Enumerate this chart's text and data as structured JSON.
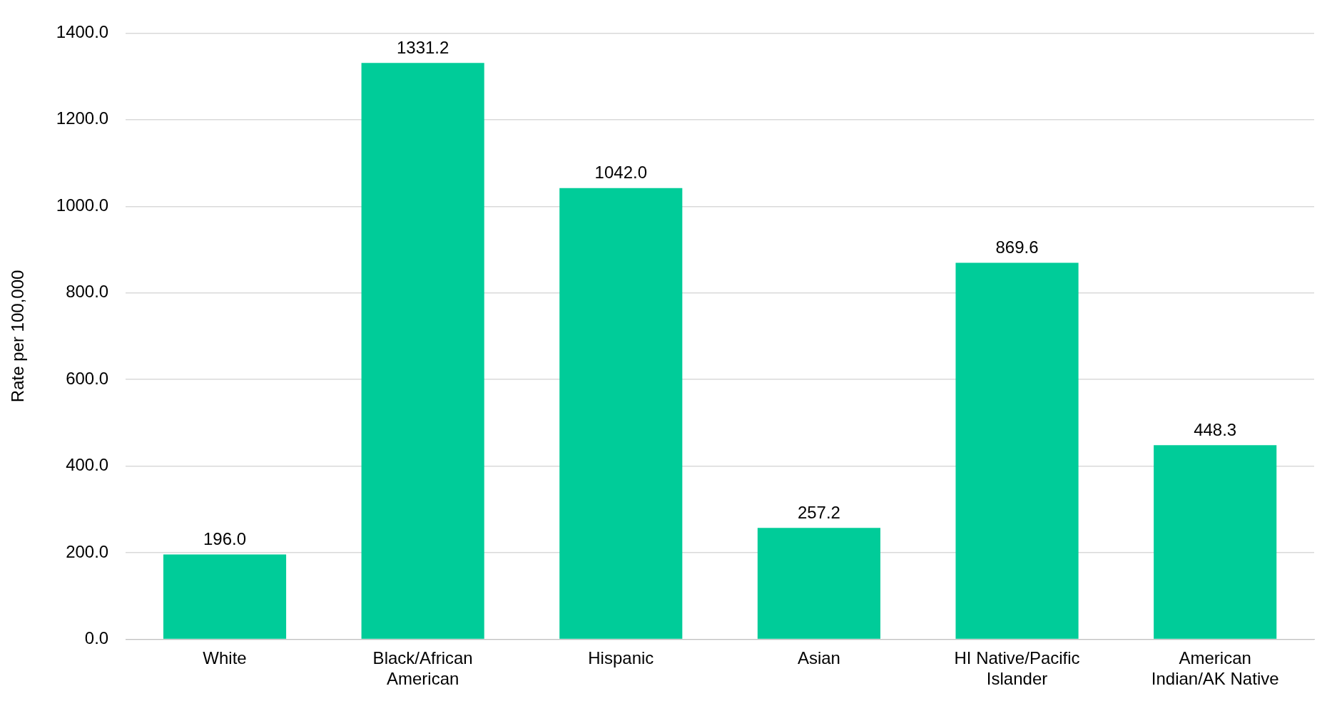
{
  "chart_data": {
    "type": "bar",
    "ylabel": "Rate per 100,000",
    "categories": [
      "White",
      "Black/African American",
      "Hispanic",
      "Asian",
      "HI Native/Pacific Islander",
      "American Indian/AK Native"
    ],
    "values": [
      196.0,
      1331.2,
      1042.0,
      257.2,
      869.6,
      448.3
    ],
    "color": "#00cc99",
    "ylim": [
      0,
      1400
    ],
    "yticks": [
      {
        "value": 0,
        "label": "0.0"
      },
      {
        "value": 200,
        "label": "200.0"
      },
      {
        "value": 400,
        "label": "400.0"
      },
      {
        "value": 600,
        "label": "600.0"
      },
      {
        "value": 800,
        "label": "800.0"
      },
      {
        "value": 1000,
        "label": "1000.0"
      },
      {
        "value": 1200,
        "label": "1200.0"
      },
      {
        "value": 1400,
        "label": "1400.0"
      }
    ],
    "value_labels": [
      "196.0",
      "1331.2",
      "1042.0",
      "257.2",
      "869.6",
      "448.3"
    ],
    "grid": "y",
    "legend": false
  }
}
